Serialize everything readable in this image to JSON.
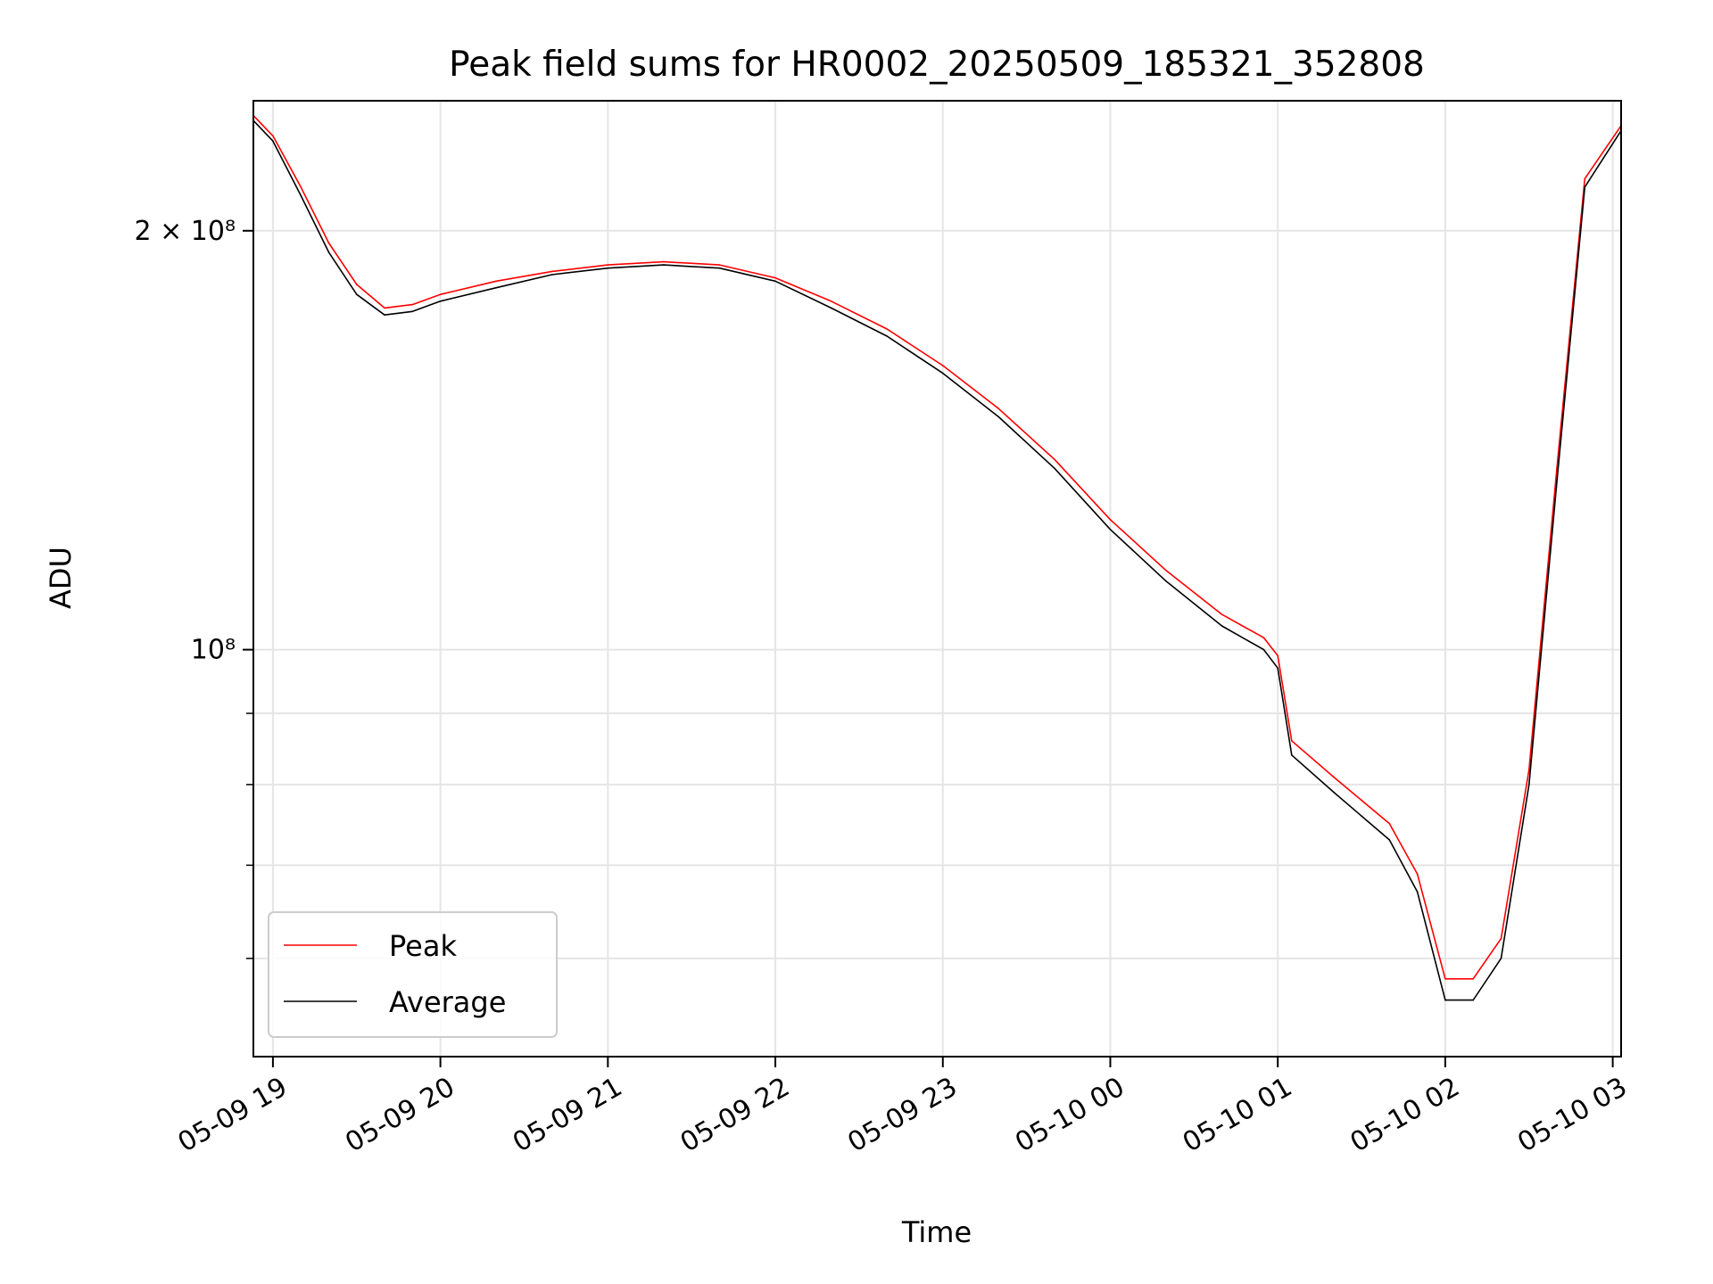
{
  "chart_data": {
    "type": "line",
    "title": "Peak field sums for HR0002_20250509_185321_352808",
    "xlabel": "Time",
    "ylabel": "ADU",
    "yscale": "log",
    "ylim": [
      51000000,
      248000000
    ],
    "xlim": [
      "2025-05-09 18:53",
      "2025-05-10 03:03"
    ],
    "grid": true,
    "legend_position": "lower-left",
    "x_ticks": [
      "05-09 19",
      "05-09 20",
      "05-09 21",
      "05-09 22",
      "05-09 23",
      "05-10 00",
      "05-10 01",
      "05-10 02",
      "05-10 03"
    ],
    "y_tick_labels": {
      "major_2e8": "2 × 10⁸",
      "major_1e8": "10⁸"
    },
    "y_minor_ticks": [
      60000000,
      70000000,
      80000000,
      90000000
    ],
    "series": [
      {
        "name": "Peak",
        "color": "#ff0000",
        "x": [
          "2025-05-09 18:53",
          "2025-05-09 19:00",
          "2025-05-09 19:10",
          "2025-05-09 19:20",
          "2025-05-09 19:30",
          "2025-05-09 19:40",
          "2025-05-09 19:50",
          "2025-05-09 20:00",
          "2025-05-09 20:20",
          "2025-05-09 20:40",
          "2025-05-09 21:00",
          "2025-05-09 21:20",
          "2025-05-09 21:40",
          "2025-05-09 22:00",
          "2025-05-09 22:20",
          "2025-05-09 22:40",
          "2025-05-09 23:00",
          "2025-05-09 23:20",
          "2025-05-09 23:40",
          "2025-05-10 00:00",
          "2025-05-10 00:20",
          "2025-05-10 00:40",
          "2025-05-10 00:55",
          "2025-05-10 01:00",
          "2025-05-10 01:05",
          "2025-05-10 01:20",
          "2025-05-10 01:40",
          "2025-05-10 01:50",
          "2025-05-10 02:00",
          "2025-05-10 02:10",
          "2025-05-10 02:20",
          "2025-05-10 02:30",
          "2025-05-10 02:40",
          "2025-05-10 02:50",
          "2025-05-10 03:03"
        ],
        "values": [
          242000000,
          234000000,
          215000000,
          196000000,
          183000000,
          176000000,
          177000000,
          180000000,
          184000000,
          187000000,
          189000000,
          190000000,
          189000000,
          185000000,
          178000000,
          170000000,
          160000000,
          149000000,
          137000000,
          124000000,
          114000000,
          106000000,
          102000000,
          99000000,
          86000000,
          81000000,
          75000000,
          69000000,
          58000000,
          58000000,
          62000000,
          82000000,
          135000000,
          218000000,
          238000000
        ]
      },
      {
        "name": "Average",
        "color": "#000000",
        "x": [
          "2025-05-09 18:53",
          "2025-05-09 19:00",
          "2025-05-09 19:10",
          "2025-05-09 19:20",
          "2025-05-09 19:30",
          "2025-05-09 19:40",
          "2025-05-09 19:50",
          "2025-05-09 20:00",
          "2025-05-09 20:20",
          "2025-05-09 20:40",
          "2025-05-09 21:00",
          "2025-05-09 21:20",
          "2025-05-09 21:40",
          "2025-05-09 22:00",
          "2025-05-09 22:20",
          "2025-05-09 22:40",
          "2025-05-09 23:00",
          "2025-05-09 23:20",
          "2025-05-09 23:40",
          "2025-05-10 00:00",
          "2025-05-10 00:20",
          "2025-05-10 00:40",
          "2025-05-10 00:55",
          "2025-05-10 01:00",
          "2025-05-10 01:05",
          "2025-05-10 01:20",
          "2025-05-10 01:40",
          "2025-05-10 01:50",
          "2025-05-10 02:00",
          "2025-05-10 02:10",
          "2025-05-10 02:20",
          "2025-05-10 02:30",
          "2025-05-10 02:40",
          "2025-05-10 02:50",
          "2025-05-10 03:03"
        ],
        "values": [
          240000000,
          232000000,
          212000000,
          193000000,
          180000000,
          174000000,
          175000000,
          178000000,
          182000000,
          186000000,
          188000000,
          189000000,
          188000000,
          184000000,
          176000000,
          168000000,
          158000000,
          147000000,
          135000000,
          122000000,
          112000000,
          104000000,
          100000000,
          97000000,
          84000000,
          79000000,
          73000000,
          67000000,
          56000000,
          56000000,
          60000000,
          80000000,
          132000000,
          215000000,
          236000000
        ]
      }
    ]
  }
}
